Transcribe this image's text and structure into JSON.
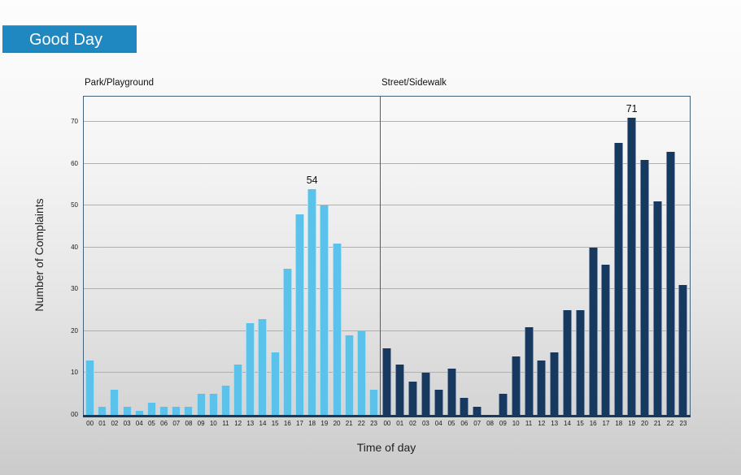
{
  "badge": {
    "label": "Good Day",
    "bg": "#1f88c1",
    "fg": "#ffffff"
  },
  "chart_data": {
    "type": "bar",
    "title": "",
    "xlabel": "Time of day",
    "ylabel": "Number of Complaints",
    "ylim": [
      0,
      76.3
    ],
    "grid": true,
    "legend": "none",
    "ytick_values": [
      0,
      10,
      20,
      30,
      40,
      50,
      60,
      70
    ],
    "ytick_labels": [
      "00",
      "10",
      "20",
      "30",
      "40",
      "50",
      "60",
      "70"
    ],
    "categories": [
      "00",
      "01",
      "02",
      "03",
      "04",
      "05",
      "06",
      "07",
      "08",
      "09",
      "10",
      "11",
      "12",
      "13",
      "14",
      "15",
      "16",
      "17",
      "18",
      "19",
      "20",
      "21",
      "22",
      "23"
    ],
    "panels": [
      {
        "title": "Park/Playground",
        "color": "#5bc2eb",
        "values": [
          13,
          2,
          6,
          2,
          1,
          3,
          2,
          2,
          2,
          5,
          5,
          7,
          12,
          22,
          23,
          15,
          35,
          48,
          54,
          50,
          41,
          19,
          20,
          6
        ],
        "annotations": [
          {
            "index": 18,
            "label": "54"
          }
        ]
      },
      {
        "title": "Street/Sidewalk",
        "color": "#17395f",
        "values": [
          16,
          12,
          8,
          10,
          6,
          11,
          4,
          2,
          0,
          5,
          14,
          21,
          13,
          15,
          25,
          25,
          40,
          36,
          65,
          71,
          61,
          51,
          63,
          31
        ],
        "annotations": [
          {
            "index": 19,
            "label": "71"
          }
        ]
      }
    ]
  },
  "colors": {
    "grid": "#b0b0b0",
    "frame": "#44617c",
    "axis": "#16395e",
    "tick_text": "#1a1a1a",
    "label_text": "#222222"
  }
}
